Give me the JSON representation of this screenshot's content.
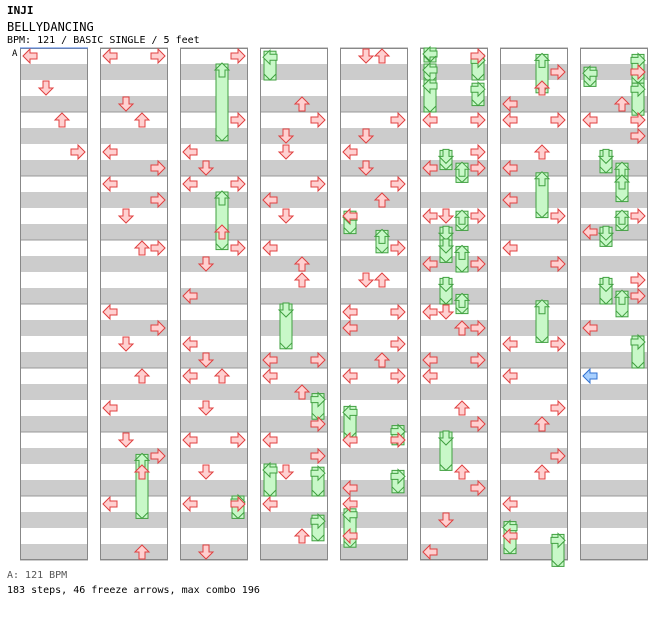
{
  "song": {
    "artist": "INJI",
    "title": "BELLYDANCING",
    "info": "BPM: 121 / BASIC SINGLE / 5 feet",
    "bpm_marker": "A",
    "bpm_legend": "A: 121 BPM",
    "stats": "183 steps, 46 freeze arrows, max combo 196"
  },
  "colors": {
    "stripe": "#cccccc",
    "column_border": "#888888",
    "arrow_fill": "#ffd0d0",
    "arrow_stroke": "#e04040",
    "freeze_fill": "#c8f8c8",
    "freeze_stroke": "#40a040",
    "shock_fill": "#a8d0ff",
    "shock_stroke": "#3070d0"
  },
  "chart_data": {
    "type": "step-chart",
    "measures_per_column": 8,
    "column_count": 8,
    "lanes": [
      "left",
      "down",
      "up",
      "right"
    ],
    "notes": [
      [
        "L",
        32,
        0
      ],
      [
        "D",
        32,
        0.5
      ],
      [
        "U",
        32,
        1
      ],
      [
        "R",
        32,
        1.5
      ],
      [
        "L",
        104,
        0
      ],
      [
        "R",
        104,
        0
      ],
      [
        "D",
        104,
        0.75
      ],
      [
        "U",
        104,
        1
      ],
      [
        "L",
        104,
        1.5
      ],
      [
        "R",
        104,
        1.75
      ],
      [
        "L",
        104,
        2
      ],
      [
        "D",
        104,
        2.5
      ],
      [
        "R",
        104,
        2.25
      ],
      [
        "U",
        104,
        3
      ],
      [
        "R",
        104,
        3
      ],
      [
        "L",
        104,
        4
      ],
      [
        "R",
        104,
        4.25
      ],
      [
        "D",
        104,
        4.5
      ],
      [
        "U",
        104,
        5
      ],
      [
        "L",
        104,
        5.5
      ],
      [
        "D",
        104,
        6
      ],
      [
        "U",
        104,
        6.5
      ],
      [
        "R",
        104,
        6.25
      ],
      [
        "L",
        104,
        7
      ],
      [
        "U",
        104,
        7.75
      ],
      [
        "R",
        184,
        0
      ],
      [
        "R",
        184,
        1
      ],
      [
        "L",
        184,
        1.5
      ],
      [
        "D",
        184,
        1.75
      ],
      [
        "L",
        184,
        2
      ],
      [
        "R",
        184,
        2
      ],
      [
        "U",
        184,
        2.75
      ],
      [
        "R",
        184,
        3
      ],
      [
        "D",
        184,
        3.25
      ],
      [
        "L",
        184,
        3.75
      ],
      [
        "L",
        184,
        4.5
      ],
      [
        "D",
        184,
        4.75
      ],
      [
        "U",
        184,
        5
      ],
      [
        "L",
        184,
        5
      ],
      [
        "D",
        184,
        5.5
      ],
      [
        "L",
        184,
        6
      ],
      [
        "R",
        184,
        6
      ],
      [
        "D",
        184,
        6.5
      ],
      [
        "L",
        184,
        7
      ],
      [
        "R",
        184,
        7
      ],
      [
        "D",
        184,
        7.75
      ],
      [
        "U",
        264,
        0.75
      ],
      [
        "R",
        264,
        1
      ],
      [
        "D",
        264,
        1.25
      ],
      [
        "D",
        264,
        1.5
      ],
      [
        "R",
        264,
        2
      ],
      [
        "L",
        264,
        2.25
      ],
      [
        "D",
        264,
        2.5
      ],
      [
        "L",
        264,
        3
      ],
      [
        "U",
        264,
        3.25
      ],
      [
        "U",
        264,
        3.5
      ],
      [
        "L",
        264,
        4.75
      ],
      [
        "R",
        264,
        4.75
      ],
      [
        "L",
        264,
        5
      ],
      [
        "U",
        264,
        5.25
      ],
      [
        "R",
        264,
        5.75
      ],
      [
        "L",
        264,
        6
      ],
      [
        "R",
        264,
        6.25
      ],
      [
        "D",
        264,
        6.5
      ],
      [
        "L",
        264,
        7
      ],
      [
        "U",
        264,
        7.5
      ],
      [
        "D",
        344,
        0
      ],
      [
        "U",
        344,
        0
      ],
      [
        "R",
        344,
        1
      ],
      [
        "D",
        344,
        1.25
      ],
      [
        "L",
        344,
        1.5
      ],
      [
        "D",
        344,
        1.75
      ],
      [
        "R",
        344,
        2
      ],
      [
        "U",
        344,
        2.25
      ],
      [
        "L",
        344,
        2.5
      ],
      [
        "R",
        344,
        3
      ],
      [
        "D",
        344,
        3.5
      ],
      [
        "U",
        344,
        3.5
      ],
      [
        "L",
        344,
        4
      ],
      [
        "R",
        344,
        4
      ],
      [
        "L",
        344,
        4.25
      ],
      [
        "R",
        344,
        4.5
      ],
      [
        "U",
        344,
        4.75
      ],
      [
        "L",
        344,
        5
      ],
      [
        "R",
        344,
        5
      ],
      [
        "L",
        344,
        6
      ],
      [
        "R",
        344,
        6
      ],
      [
        "L",
        344,
        6.75
      ],
      [
        "L",
        344,
        7
      ],
      [
        "L",
        344,
        7.5
      ],
      [
        "R",
        424,
        0
      ],
      [
        "L",
        424,
        1
      ],
      [
        "R",
        424,
        1
      ],
      [
        "L",
        424,
        1.75
      ],
      [
        "R",
        424,
        1.75
      ],
      [
        "R",
        424,
        1.5
      ],
      [
        "L",
        424,
        2.5
      ],
      [
        "D",
        424,
        2.5
      ],
      [
        "R",
        424,
        2.5
      ],
      [
        "L",
        424,
        3.25
      ],
      [
        "R",
        424,
        3.25
      ],
      [
        "L",
        424,
        4
      ],
      [
        "D",
        424,
        4
      ],
      [
        "U",
        424,
        4.25
      ],
      [
        "R",
        424,
        4.25
      ],
      [
        "L",
        424,
        4.75
      ],
      [
        "R",
        424,
        4.75
      ],
      [
        "L",
        424,
        5
      ],
      [
        "U",
        424,
        5.5
      ],
      [
        "R",
        424,
        5.75
      ],
      [
        "U",
        424,
        6.5
      ],
      [
        "R",
        424,
        6.75
      ],
      [
        "D",
        424,
        7.25
      ],
      [
        "L",
        424,
        7.75
      ],
      [
        "L",
        504,
        1
      ],
      [
        "R",
        504,
        1
      ],
      [
        "L",
        504,
        1.75
      ],
      [
        "U",
        504,
        1.5
      ],
      [
        "L",
        504,
        2.25
      ],
      [
        "R",
        504,
        2.5
      ],
      [
        "L",
        504,
        3
      ],
      [
        "R",
        504,
        3.25
      ],
      [
        "L",
        504,
        4.5
      ],
      [
        "R",
        504,
        4.5
      ],
      [
        "L",
        504,
        5
      ],
      [
        "U",
        504,
        5.75
      ],
      [
        "R",
        504,
        5.5
      ],
      [
        "U",
        504,
        6.5
      ],
      [
        "R",
        504,
        6.25
      ],
      [
        "L",
        504,
        7
      ],
      [
        "L",
        504,
        7.5
      ],
      [
        "U",
        504,
        0.5
      ],
      [
        "L",
        504,
        0.75
      ],
      [
        "R",
        504,
        0.25
      ],
      [
        "R",
        584,
        0.25
      ],
      [
        "L",
        584,
        1
      ],
      [
        "R",
        584,
        1
      ],
      [
        "R",
        584,
        1.25
      ],
      [
        "R",
        584,
        2.5
      ],
      [
        "L",
        584,
        2.75
      ],
      [
        "U",
        584,
        0.75
      ],
      [
        "R",
        584,
        3.5
      ],
      [
        "R",
        584,
        3.75
      ],
      [
        "L",
        584,
        4.25
      ]
    ],
    "freezes": [
      [
        "U",
        184,
        0.25,
        1.2
      ],
      [
        "U",
        184,
        2.25,
        0.9
      ],
      [
        "U",
        504,
        0.1,
        0.6
      ],
      [
        "D",
        264,
        4,
        0.7
      ],
      [
        "L",
        344,
        2.55,
        0.35
      ],
      [
        "U",
        344,
        2.85,
        0.35
      ],
      [
        "L",
        344,
        5.6,
        0.5
      ],
      [
        "R",
        344,
        5.9,
        0.3
      ],
      [
        "R",
        344,
        6.6,
        0.35
      ],
      [
        "L",
        344,
        7.2,
        0.6
      ],
      [
        "L",
        424,
        0,
        0.2
      ],
      [
        "L",
        424,
        0.25,
        0.3
      ],
      [
        "L",
        424,
        0.5,
        0.5
      ],
      [
        "R",
        424,
        0.1,
        0.4
      ],
      [
        "R",
        424,
        0.55,
        0.35
      ],
      [
        "D",
        424,
        1.6,
        0.3
      ],
      [
        "U",
        424,
        1.8,
        0.3
      ],
      [
        "D",
        424,
        2.8,
        0.3
      ],
      [
        "U",
        424,
        2.55,
        0.3
      ],
      [
        "D",
        424,
        3.0,
        0.35
      ],
      [
        "U",
        424,
        3.1,
        0.4
      ],
      [
        "D",
        424,
        3.6,
        0.4
      ],
      [
        "U",
        424,
        3.85,
        0.3
      ],
      [
        "D",
        424,
        6.0,
        0.6
      ],
      [
        "L",
        504,
        7.4,
        0.5
      ],
      [
        "R",
        504,
        7.6,
        0.5
      ],
      [
        "L",
        584,
        0.3,
        0.3
      ],
      [
        "R",
        584,
        0.1,
        0.45
      ],
      [
        "R",
        584,
        0.55,
        0.5
      ],
      [
        "D",
        584,
        1.6,
        0.35
      ],
      [
        "U",
        584,
        1.8,
        0.35
      ],
      [
        "D",
        584,
        2.8,
        0.3
      ],
      [
        "U",
        584,
        2.55,
        0.3
      ],
      [
        "D",
        584,
        3.6,
        0.4
      ],
      [
        "U",
        584,
        3.8,
        0.4
      ],
      [
        "R",
        584,
        4.5,
        0.5
      ],
      [
        "U",
        584,
        2.0,
        0.4
      ],
      [
        "U",
        504,
        1.95,
        0.7
      ],
      [
        "U",
        504,
        3.95,
        0.65
      ],
      [
        "U",
        104,
        6.35,
        1.0
      ],
      [
        "R",
        184,
        7.0,
        0.35
      ],
      [
        "R",
        264,
        5.4,
        0.4
      ],
      [
        "R",
        264,
        6.55,
        0.45
      ],
      [
        "R",
        264,
        7.3,
        0.4
      ],
      [
        "L",
        264,
        0.05,
        0.45
      ],
      [
        "L",
        264,
        6.5,
        0.5
      ]
    ],
    "shocks": [
      [
        "L",
        584,
        5
      ]
    ]
  }
}
